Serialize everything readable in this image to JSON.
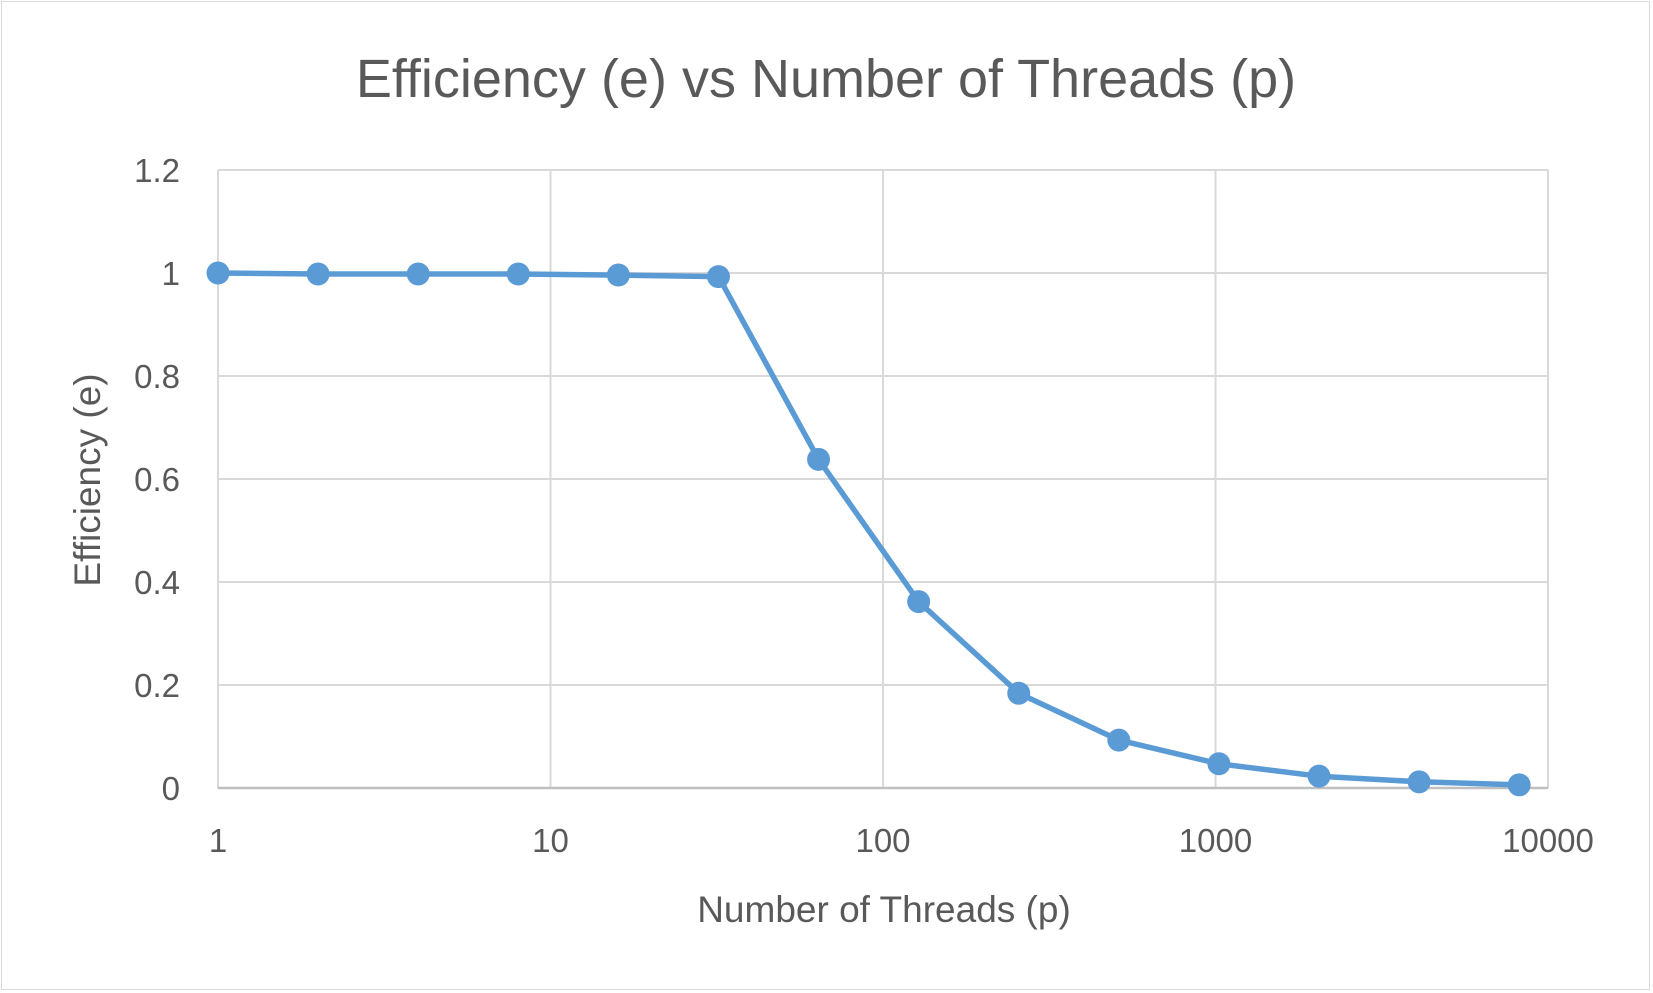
{
  "chart_data": {
    "type": "line",
    "title": "Efficiency (e) vs Number of Threads (p)",
    "xlabel": "Number of Threads (p)",
    "ylabel": "Efficiency (e)",
    "xscale": "log",
    "xlim": [
      1,
      10000
    ],
    "ylim": [
      0,
      1.2
    ],
    "xticks": [
      "1",
      "10",
      "100",
      "1000",
      "10000"
    ],
    "yticks": [
      "0",
      "0.2",
      "0.4",
      "0.6",
      "0.8",
      "1",
      "1.2"
    ],
    "grid": true,
    "legend": "none",
    "series": [
      {
        "color": "#5b9bd5",
        "marker": "circle",
        "x": [
          1,
          2,
          4,
          8,
          16,
          32,
          64,
          128,
          256,
          512,
          1024,
          2048,
          4096,
          8192
        ],
        "y": [
          1.0,
          0.998,
          0.998,
          0.998,
          0.996,
          0.993,
          0.638,
          0.362,
          0.184,
          0.093,
          0.047,
          0.023,
          0.012,
          0.006
        ]
      }
    ]
  }
}
